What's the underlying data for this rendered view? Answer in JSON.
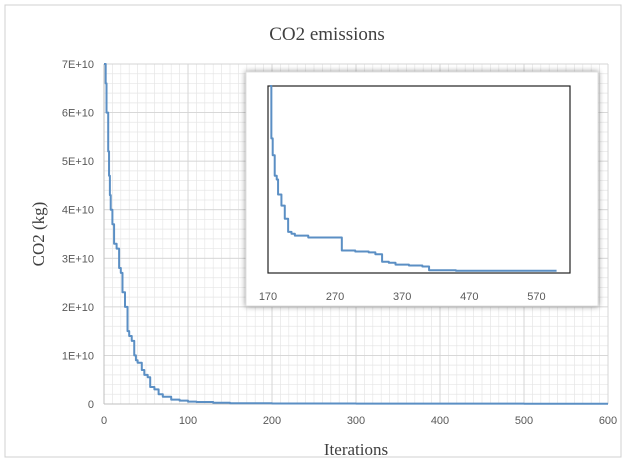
{
  "chart_data": [
    {
      "type": "line",
      "title": "CO2 emissions",
      "xlabel": "Iterations",
      "ylabel": "CO2 (kg)",
      "xlim": [
        0,
        600
      ],
      "ylim": [
        0,
        70000000000
      ],
      "x_ticks": [
        0,
        100,
        200,
        300,
        400,
        500,
        600
      ],
      "x_tick_labels": [
        "0",
        "100",
        "200",
        "300",
        "400",
        "500",
        "600"
      ],
      "y_ticks": [
        0,
        10000000000,
        20000000000,
        30000000000,
        40000000000,
        50000000000,
        60000000000,
        70000000000
      ],
      "y_tick_labels": [
        "0",
        "1E+10",
        "2E+10",
        "3E+10",
        "4E+10",
        "5E+10",
        "6E+10",
        "7E+10"
      ],
      "grid": true,
      "color": "#5b8fc4",
      "x": [
        0,
        2,
        3,
        5,
        6,
        7,
        8,
        10,
        12,
        15,
        18,
        20,
        22,
        25,
        28,
        30,
        33,
        36,
        38,
        40,
        45,
        48,
        52,
        55,
        60,
        65,
        70,
        80,
        90,
        100,
        110,
        130,
        150,
        200,
        300,
        400,
        500,
        600
      ],
      "y": [
        70000000000,
        66000000000,
        60000000000,
        52000000000,
        47000000000,
        43000000000,
        40000000000,
        37000000000,
        33000000000,
        32000000000,
        28000000000,
        27000000000,
        23000000000,
        20000000000,
        15000000000,
        14000000000,
        13000000000,
        10000000000,
        9000000000,
        8500000000,
        7000000000,
        6000000000,
        5500000000,
        3500000000,
        3000000000,
        2000000000,
        1500000000,
        900000000,
        700000000,
        500000000,
        400000000,
        250000000,
        150000000,
        100000000,
        80000000,
        70000000,
        60000000,
        60000000
      ]
    },
    {
      "type": "line",
      "title": "",
      "xlabel": "",
      "ylabel": "",
      "xlim": [
        170,
        620
      ],
      "x_ticks": [
        170,
        270,
        370,
        470,
        570
      ],
      "x_tick_labels": [
        "170",
        "270",
        "370",
        "470",
        "570"
      ],
      "y_relative_range": [
        0,
        1
      ],
      "grid": false,
      "color": "#5b8fc4",
      "x": [
        173,
        175,
        177,
        180,
        183,
        185,
        190,
        195,
        200,
        205,
        210,
        230,
        250,
        270,
        280,
        300,
        320,
        330,
        340,
        350,
        360,
        380,
        400,
        410,
        450,
        500,
        550,
        600
      ],
      "y_relative": [
        1.0,
        0.72,
        0.63,
        0.52,
        0.5,
        0.42,
        0.36,
        0.29,
        0.22,
        0.21,
        0.2,
        0.19,
        0.19,
        0.19,
        0.12,
        0.115,
        0.11,
        0.1,
        0.06,
        0.055,
        0.045,
        0.04,
        0.035,
        0.015,
        0.012,
        0.012,
        0.012,
        0.012
      ]
    }
  ]
}
